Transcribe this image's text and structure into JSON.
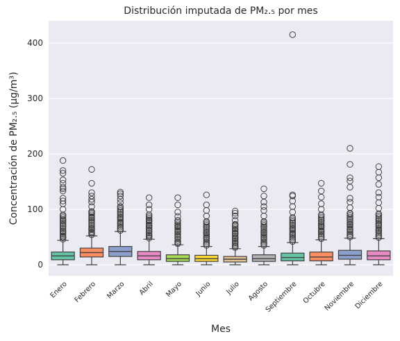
{
  "chart_data": {
    "type": "box",
    "title": "Distribución imputada de PM₂.₅ por mes",
    "xlabel": "Mes",
    "ylabel": "Concentración de PM₂.₅ (μg/m³)",
    "ylim": [
      -20,
      440
    ],
    "yticks": [
      0,
      100,
      200,
      300,
      400
    ],
    "grid": true,
    "background": "#eaeaf2",
    "categories": [
      "Enero",
      "Febrero",
      "Marzo",
      "Abril",
      "Mayo",
      "Junio",
      "Julio",
      "Agosto",
      "Septiembre",
      "Octubre",
      "Noviembre",
      "Diciembre"
    ],
    "colors": [
      "#66c2a5",
      "#fc8d62",
      "#8da0cb",
      "#e78ac3",
      "#a6d854",
      "#ffd92f",
      "#e5c494",
      "#b3b3b3",
      "#66c2a5",
      "#fc8d62",
      "#8da0cb",
      "#e78ac3"
    ],
    "boxes": [
      {
        "whisker_low": 0,
        "q1": 9,
        "median": 16,
        "q3": 23,
        "whisker_high": 44,
        "outliers": [
          50,
          60,
          70,
          80,
          90,
          100,
          110,
          115,
          120,
          133,
          137,
          140,
          147,
          153,
          165,
          170,
          188
        ]
      },
      {
        "whisker_low": 0,
        "q1": 14,
        "median": 22,
        "q3": 30,
        "whisker_high": 52,
        "outliers": [
          58,
          65,
          75,
          85,
          95,
          105,
          113,
          118,
          124,
          130,
          147,
          172
        ]
      },
      {
        "whisker_low": 0,
        "q1": 15,
        "median": 24,
        "q3": 33,
        "whisker_high": 60,
        "outliers": [
          65,
          75,
          85,
          95,
          105,
          112,
          118,
          124,
          128,
          131
        ]
      },
      {
        "whisker_low": 0,
        "q1": 9,
        "median": 16,
        "q3": 24,
        "whisker_high": 46,
        "outliers": [
          52,
          60,
          70,
          80,
          90,
          100,
          108,
          121
        ]
      },
      {
        "whisker_low": 0,
        "q1": 6,
        "median": 11,
        "q3": 18,
        "whisker_high": 36,
        "outliers": [
          40,
          50,
          60,
          70,
          80,
          87,
          95,
          108,
          121
        ]
      },
      {
        "whisker_low": 0,
        "q1": 6,
        "median": 11,
        "q3": 17,
        "whisker_high": 33,
        "outliers": [
          38,
          48,
          58,
          68,
          78,
          88,
          98,
          108,
          126
        ]
      },
      {
        "whisker_low": 0,
        "q1": 5,
        "median": 10,
        "q3": 15,
        "whisker_high": 29,
        "outliers": [
          33,
          40,
          48,
          56,
          64,
          72,
          80,
          88,
          93,
          97
        ]
      },
      {
        "whisker_low": 0,
        "q1": 6,
        "median": 11,
        "q3": 18,
        "whisker_high": 33,
        "outliers": [
          38,
          48,
          58,
          68,
          78,
          88,
          98,
          105,
          113,
          124,
          137
        ]
      },
      {
        "whisker_low": 0,
        "q1": 7,
        "median": 13,
        "q3": 21,
        "whisker_high": 40,
        "outliers": [
          45,
          55,
          65,
          75,
          85,
          95,
          105,
          115,
          124,
          126,
          415
        ]
      },
      {
        "whisker_low": 0,
        "q1": 7,
        "median": 14,
        "q3": 23,
        "whisker_high": 45,
        "outliers": [
          50,
          60,
          70,
          80,
          90,
          100,
          110,
          122,
          133,
          147
        ]
      },
      {
        "whisker_low": 0,
        "q1": 10,
        "median": 17,
        "q3": 26,
        "whisker_high": 48,
        "outliers": [
          53,
          63,
          73,
          83,
          93,
          103,
          113,
          120,
          140,
          151,
          157,
          181,
          210
        ]
      },
      {
        "whisker_low": 0,
        "q1": 9,
        "median": 16,
        "q3": 25,
        "whisker_high": 47,
        "outliers": [
          52,
          62,
          72,
          82,
          92,
          102,
          112,
          122,
          130,
          145,
          157,
          167,
          177
        ]
      }
    ]
  }
}
